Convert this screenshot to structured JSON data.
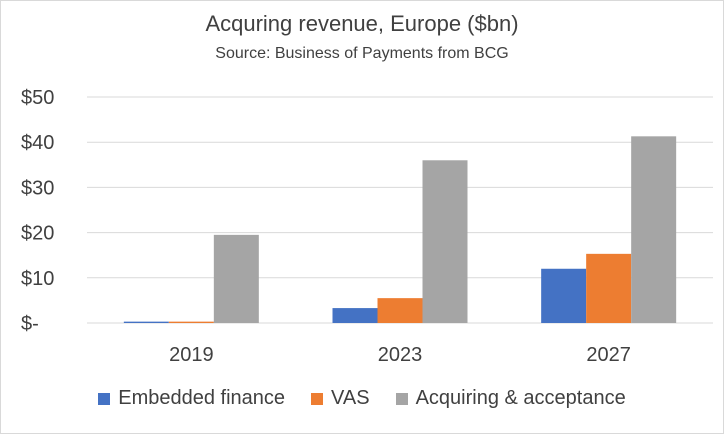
{
  "chart_data": {
    "type": "bar",
    "title": "Acquring revenue, Europe ($bn)",
    "subtitle": "Source: Business of Payments from BCG",
    "categories": [
      "2019",
      "2023",
      "2027"
    ],
    "series": [
      {
        "name": "Embedded finance",
        "color": "#4472c4",
        "values": [
          0.3,
          3.3,
          12.0
        ]
      },
      {
        "name": "VAS",
        "color": "#ed7d31",
        "values": [
          0.3,
          5.5,
          15.3
        ]
      },
      {
        "name": "Acquiring & acceptance",
        "color": "#a5a5a5",
        "values": [
          19.5,
          36.0,
          41.3
        ]
      }
    ],
    "ylim": [
      0,
      50
    ],
    "yticks": [
      0,
      10,
      20,
      30,
      40,
      50
    ],
    "ytick_labels": [
      "$-",
      "$10",
      "$20",
      "$30",
      "$40",
      "$50"
    ],
    "grid": true,
    "legend_position": "bottom"
  }
}
